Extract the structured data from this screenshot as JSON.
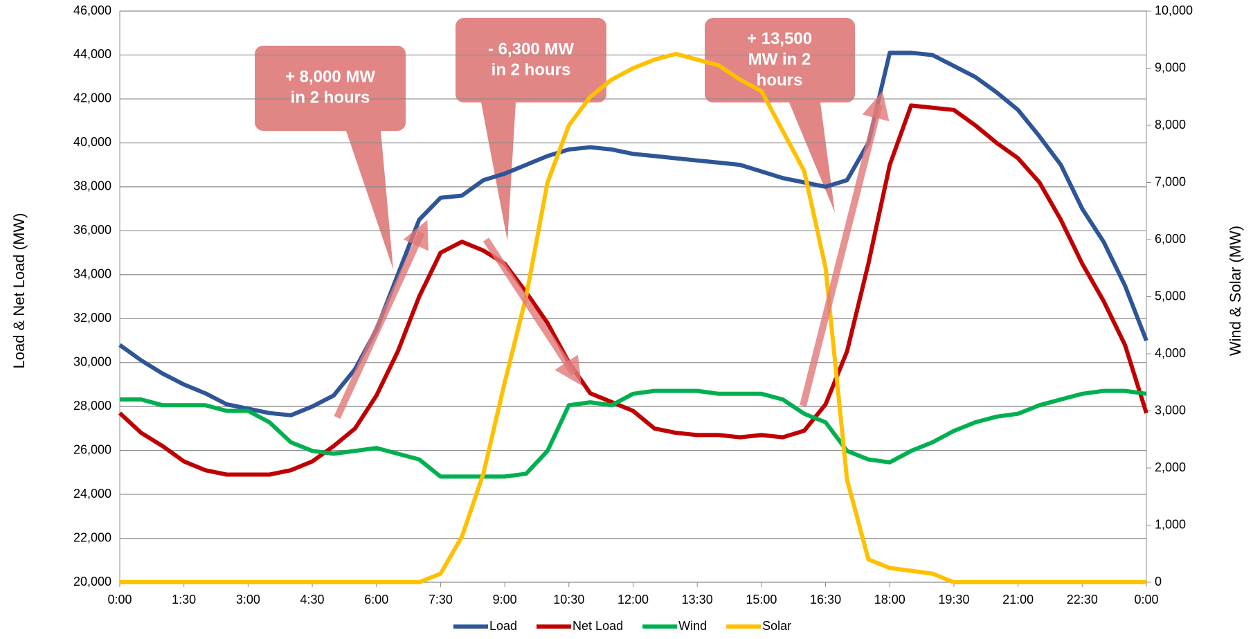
{
  "chart_data": {
    "type": "line",
    "y_label": "Load & Net Load (MW)",
    "y2_label": "Wind & Solar (MW)",
    "x": [
      0,
      0.5,
      1,
      1.5,
      2,
      2.5,
      3,
      3.5,
      4,
      4.5,
      5,
      5.5,
      6,
      6.5,
      7,
      7.5,
      8,
      8.5,
      9,
      9.5,
      10,
      10.5,
      11,
      11.5,
      12,
      12.5,
      13,
      13.5,
      14,
      14.5,
      15,
      15.5,
      16,
      16.5,
      17,
      17.5,
      18,
      18.5,
      19,
      19.5,
      20,
      20.5,
      21,
      21.5,
      22,
      22.5,
      23,
      23.5,
      24
    ],
    "xlim": [
      0,
      24
    ],
    "xticks": [
      {
        "value": 0,
        "label": "0:00"
      },
      {
        "value": 1.5,
        "label": "1:30"
      },
      {
        "value": 3,
        "label": "3:00"
      },
      {
        "value": 4.5,
        "label": "4:30"
      },
      {
        "value": 6,
        "label": "6:00"
      },
      {
        "value": 7.5,
        "label": "7:30"
      },
      {
        "value": 9,
        "label": "9:00"
      },
      {
        "value": 10.5,
        "label": "10:30"
      },
      {
        "value": 12,
        "label": "12:00"
      },
      {
        "value": 13.5,
        "label": "13:30"
      },
      {
        "value": 15,
        "label": "15:00"
      },
      {
        "value": 16.5,
        "label": "16:30"
      },
      {
        "value": 18,
        "label": "18:00"
      },
      {
        "value": 19.5,
        "label": "19:30"
      },
      {
        "value": 21,
        "label": "21:00"
      },
      {
        "value": 22.5,
        "label": "22:30"
      },
      {
        "value": 24,
        "label": "0:00"
      }
    ],
    "ylim": [
      20000,
      46000
    ],
    "yticks": [
      {
        "value": 20000,
        "label": "20,000"
      },
      {
        "value": 22000,
        "label": "22,000"
      },
      {
        "value": 24000,
        "label": "24,000"
      },
      {
        "value": 26000,
        "label": "26,000"
      },
      {
        "value": 28000,
        "label": "28,000"
      },
      {
        "value": 30000,
        "label": "30,000"
      },
      {
        "value": 32000,
        "label": "32,000"
      },
      {
        "value": 34000,
        "label": "34,000"
      },
      {
        "value": 36000,
        "label": "36,000"
      },
      {
        "value": 38000,
        "label": "38,000"
      },
      {
        "value": 40000,
        "label": "40,000"
      },
      {
        "value": 42000,
        "label": "42,000"
      },
      {
        "value": 44000,
        "label": "44,000"
      },
      {
        "value": 46000,
        "label": "46,000"
      }
    ],
    "y2lim": [
      0,
      10000
    ],
    "y2ticks": [
      0,
      {
        "value": 1000,
        "label": "1,000"
      },
      {
        "value": 2000,
        "label": "2,000"
      },
      {
        "value": 3000,
        "label": "3,000"
      },
      {
        "value": 4000,
        "label": "4,000"
      },
      {
        "value": 5000,
        "label": "5,000"
      },
      {
        "value": 6000,
        "label": "6,000"
      },
      {
        "value": 7000,
        "label": "7,000"
      },
      {
        "value": 8000,
        "label": "8,000"
      },
      {
        "value": 9000,
        "label": "9,000"
      },
      {
        "value": 10000,
        "label": "10,000"
      }
    ],
    "grid": true,
    "legend": "bottom",
    "series": [
      {
        "name": "Load",
        "color": "#2e5597",
        "values": [
          30800,
          30100,
          29500,
          29000,
          28600,
          28100,
          27900,
          27700,
          27600,
          28000,
          28500,
          29700,
          31500,
          34000,
          36500,
          37500,
          37600,
          38300,
          38600,
          39000,
          39400,
          39700,
          39800,
          39700,
          39500,
          39400,
          39300,
          39200,
          39100,
          39000,
          38700,
          38400,
          38200,
          38000,
          38300,
          40000,
          44100,
          44100,
          44000,
          43500,
          43000,
          42300,
          41500,
          40300,
          39000,
          37000,
          35500,
          33500,
          31000
        ]
      },
      {
        "name": "Net Load",
        "color": "#c00000",
        "values": [
          27700,
          26800,
          26200,
          25500,
          25100,
          24900,
          24900,
          24900,
          25100,
          25500,
          26200,
          27000,
          28500,
          30500,
          33000,
          35000,
          35500,
          35100,
          34500,
          33200,
          31800,
          30000,
          28600,
          28200,
          27800,
          27000,
          26800,
          26700,
          26700,
          26600,
          26700,
          26600,
          26900,
          28100,
          30500,
          34500,
          39000,
          41700,
          41600,
          41500,
          40800,
          40000,
          39300,
          38200,
          36500,
          34500,
          32800,
          30800,
          27700
        ]
      },
      {
        "name": "Wind",
        "color": "#00b050",
        "axis": "y2",
        "values": [
          3200,
          3200,
          3100,
          3100,
          3100,
          3000,
          3000,
          2800,
          2450,
          2300,
          2250,
          2300,
          2350,
          2250,
          2150,
          1850,
          1850,
          1850,
          1850,
          1900,
          2300,
          3100,
          3150,
          3100,
          3300,
          3350,
          3350,
          3350,
          3300,
          3300,
          3300,
          3200,
          2950,
          2800,
          2300,
          2150,
          2100,
          2300,
          2450,
          2650,
          2800,
          2900,
          2950,
          3100,
          3200,
          3300,
          3350,
          3350,
          3300
        ]
      },
      {
        "name": "Solar",
        "color": "#ffc000",
        "axis": "y2",
        "values": [
          0,
          0,
          0,
          0,
          0,
          0,
          0,
          0,
          0,
          0,
          0,
          0,
          0,
          0,
          0,
          150,
          800,
          1900,
          3500,
          5000,
          7000,
          8000,
          8500,
          8800,
          9000,
          9150,
          9250,
          9150,
          9050,
          8800,
          8600,
          7900,
          7200,
          5500,
          1800,
          400,
          250,
          200,
          150,
          0,
          0,
          0,
          0,
          0,
          0,
          0,
          0,
          0,
          0
        ]
      }
    ],
    "annotations": [
      [
        "+ 8,000 MW",
        "in 2 hours"
      ],
      [
        "- 6,300 MW",
        "in 2 hours"
      ],
      [
        "+ 13,500",
        "MW in 2",
        "hours"
      ]
    ]
  }
}
